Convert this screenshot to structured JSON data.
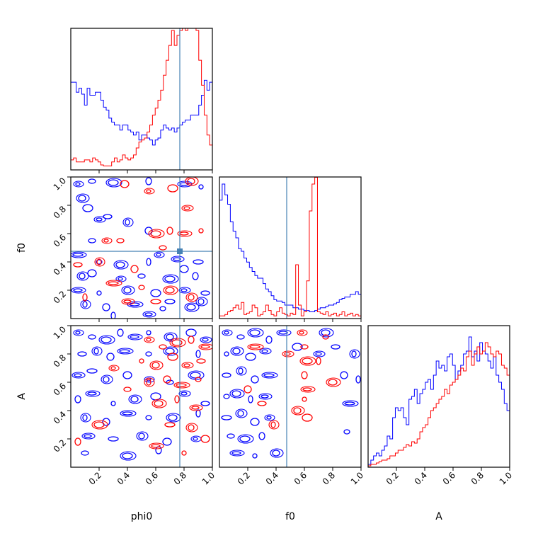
{
  "chart_data": {
    "type": "corner",
    "parameters": [
      "phi0",
      "f0",
      "A"
    ],
    "axis_labels": {
      "phi0": "phi0",
      "f0": "f0",
      "A": "A"
    },
    "range": [
      0,
      1
    ],
    "ticks": [
      0.2,
      0.4,
      0.6,
      0.8,
      1.0
    ],
    "tick_labels": [
      "0.2",
      "0.4",
      "0.6",
      "0.8",
      "1.0"
    ],
    "truths": {
      "phi0": 0.77,
      "f0": 0.475
    },
    "colors": {
      "series_a": "#0000ff",
      "series_b": "#ff0000",
      "truth": "#4682b4"
    },
    "histograms": {
      "phi0": {
        "blue": [
          0.88,
          0.88,
          0.78,
          0.82,
          0.76,
          0.65,
          0.82,
          0.75,
          0.75,
          0.78,
          0.78,
          0.7,
          0.63,
          0.6,
          0.52,
          0.48,
          0.45,
          0.45,
          0.4,
          0.45,
          0.45,
          0.4,
          0.38,
          0.35,
          0.38,
          0.3,
          0.35,
          0.35,
          0.32,
          0.3,
          0.25,
          0.3,
          0.32,
          0.4,
          0.45,
          0.42,
          0.4,
          0.42,
          0.38,
          0.42,
          0.45,
          0.48,
          0.5,
          0.5,
          0.55,
          0.55,
          0.55,
          0.65,
          0.75,
          0.9,
          0.8,
          0.88
        ],
        "red": [
          0.1,
          0.12,
          0.08,
          0.08,
          0.08,
          0.1,
          0.1,
          0.08,
          0.12,
          0.1,
          0.08,
          0.05,
          0.04,
          0.04,
          0.04,
          0.08,
          0.12,
          0.08,
          0.1,
          0.15,
          0.12,
          0.1,
          0.12,
          0.15,
          0.22,
          0.28,
          0.3,
          0.32,
          0.38,
          0.45,
          0.55,
          0.62,
          0.7,
          0.8,
          0.95,
          1.1,
          1.25,
          1.4,
          1.25,
          1.35,
          1.4,
          1.45,
          1.4,
          1.6,
          1.7,
          1.55,
          1.4,
          1.1,
          0.85,
          0.55,
          0.35,
          0.25
        ]
      },
      "f0": {
        "blue": [
          0.88,
          1.0,
          0.92,
          0.85,
          0.72,
          0.65,
          0.6,
          0.52,
          0.5,
          0.45,
          0.42,
          0.38,
          0.35,
          0.32,
          0.3,
          0.3,
          0.26,
          0.22,
          0.2,
          0.17,
          0.14,
          0.13,
          0.13,
          0.12,
          0.1,
          0.1,
          0.1,
          0.08,
          0.08,
          0.07,
          0.07,
          0.06,
          0.06,
          0.05,
          0.05,
          0.06,
          0.07,
          0.08,
          0.08,
          0.09,
          0.1,
          0.1,
          0.11,
          0.12,
          0.14,
          0.15,
          0.16,
          0.16,
          0.18,
          0.18,
          0.2,
          0.18
        ],
        "red": [
          0.02,
          0.02,
          0.03,
          0.05,
          0.06,
          0.08,
          0.1,
          0.07,
          0.12,
          0.03,
          0.04,
          0.05,
          0.1,
          0.08,
          0.02,
          0.03,
          0.05,
          0.1,
          0.06,
          0.03,
          0.02,
          0.05,
          0.08,
          0.04,
          0.03,
          0.02,
          0.04,
          0.03,
          0.4,
          0.1,
          0.02,
          0.05,
          0.28,
          0.8,
          1.0,
          1.05,
          0.05,
          0.04,
          0.03,
          0.05,
          0.02,
          0.03,
          0.04,
          0.02,
          0.03,
          0.05,
          0.02,
          0.03,
          0.04,
          0.02,
          0.03,
          0.02
        ]
      },
      "A": {
        "blue": [
          0.02,
          0.05,
          0.08,
          0.1,
          0.08,
          0.12,
          0.15,
          0.22,
          0.2,
          0.35,
          0.42,
          0.4,
          0.42,
          0.35,
          0.3,
          0.48,
          0.5,
          0.55,
          0.45,
          0.52,
          0.55,
          0.6,
          0.62,
          0.55,
          0.65,
          0.75,
          0.7,
          0.72,
          0.68,
          0.78,
          0.8,
          0.72,
          0.62,
          0.68,
          0.72,
          0.8,
          0.82,
          0.92,
          0.78,
          0.82,
          0.75,
          0.88,
          0.82,
          0.8,
          0.75,
          0.7,
          0.78,
          0.65,
          0.6,
          0.55,
          0.45,
          0.4
        ],
        "red": [
          0.01,
          0.02,
          0.02,
          0.03,
          0.04,
          0.05,
          0.05,
          0.06,
          0.08,
          0.08,
          0.1,
          0.12,
          0.12,
          0.14,
          0.16,
          0.15,
          0.18,
          0.17,
          0.2,
          0.25,
          0.28,
          0.3,
          0.35,
          0.4,
          0.42,
          0.45,
          0.48,
          0.5,
          0.55,
          0.52,
          0.58,
          0.6,
          0.62,
          0.65,
          0.7,
          0.68,
          0.78,
          0.82,
          0.72,
          0.8,
          0.85,
          0.8,
          0.82,
          0.88,
          0.85,
          0.8,
          0.78,
          0.82,
          0.8,
          0.72,
          0.7,
          0.65
        ]
      }
    },
    "contour_points": {
      "f0_vs_phi0": {
        "blue": [
          [
            0.05,
            0.95
          ],
          [
            0.15,
            0.97
          ],
          [
            0.3,
            0.96
          ],
          [
            0.55,
            0.97
          ],
          [
            0.8,
            0.95
          ],
          [
            0.92,
            0.93
          ],
          [
            0.08,
            0.85
          ],
          [
            0.12,
            0.78
          ],
          [
            0.2,
            0.7
          ],
          [
            0.26,
            0.72
          ],
          [
            0.4,
            0.68
          ],
          [
            0.55,
            0.62
          ],
          [
            0.05,
            0.45
          ],
          [
            0.2,
            0.4
          ],
          [
            0.35,
            0.38
          ],
          [
            0.55,
            0.4
          ],
          [
            0.75,
            0.42
          ],
          [
            0.9,
            0.4
          ],
          [
            0.08,
            0.3
          ],
          [
            0.15,
            0.32
          ],
          [
            0.35,
            0.28
          ],
          [
            0.5,
            0.3
          ],
          [
            0.7,
            0.28
          ],
          [
            0.88,
            0.3
          ],
          [
            0.05,
            0.2
          ],
          [
            0.2,
            0.18
          ],
          [
            0.4,
            0.2
          ],
          [
            0.6,
            0.18
          ],
          [
            0.8,
            0.2
          ],
          [
            0.95,
            0.18
          ],
          [
            0.1,
            0.1
          ],
          [
            0.25,
            0.08
          ],
          [
            0.45,
            0.1
          ],
          [
            0.65,
            0.07
          ],
          [
            0.85,
            0.08
          ],
          [
            0.3,
            0.02
          ],
          [
            0.55,
            0.03
          ],
          [
            0.7,
            0.12
          ],
          [
            0.92,
            0.12
          ],
          [
            0.8,
            0.35
          ],
          [
            0.62,
            0.45
          ],
          [
            0.15,
            0.55
          ]
        ],
        "red": [
          [
            0.25,
            0.55
          ],
          [
            0.35,
            0.55
          ],
          [
            0.6,
            0.6
          ],
          [
            0.7,
            0.62
          ],
          [
            0.8,
            0.6
          ],
          [
            0.92,
            0.62
          ],
          [
            0.85,
            0.97
          ],
          [
            0.72,
            0.92
          ],
          [
            0.82,
            0.78
          ],
          [
            0.05,
            0.38
          ],
          [
            0.2,
            0.4
          ],
          [
            0.45,
            0.35
          ],
          [
            0.3,
            0.25
          ],
          [
            0.5,
            0.22
          ],
          [
            0.7,
            0.2
          ],
          [
            0.1,
            0.15
          ],
          [
            0.4,
            0.12
          ],
          [
            0.6,
            0.12
          ],
          [
            0.85,
            0.15
          ],
          [
            0.38,
            0.95
          ],
          [
            0.55,
            0.9
          ],
          [
            0.65,
            0.5
          ]
        ]
      },
      "A_vs_phi0": {
        "blue": [
          [
            0.05,
            0.95
          ],
          [
            0.15,
            0.92
          ],
          [
            0.25,
            0.9
          ],
          [
            0.35,
            0.95
          ],
          [
            0.45,
            0.92
          ],
          [
            0.55,
            0.95
          ],
          [
            0.7,
            0.92
          ],
          [
            0.85,
            0.95
          ],
          [
            0.95,
            0.9
          ],
          [
            0.08,
            0.8
          ],
          [
            0.18,
            0.82
          ],
          [
            0.28,
            0.78
          ],
          [
            0.38,
            0.82
          ],
          [
            0.55,
            0.8
          ],
          [
            0.7,
            0.82
          ],
          [
            0.9,
            0.8
          ],
          [
            0.05,
            0.65
          ],
          [
            0.15,
            0.68
          ],
          [
            0.25,
            0.62
          ],
          [
            0.4,
            0.65
          ],
          [
            0.55,
            0.62
          ],
          [
            0.7,
            0.6
          ],
          [
            0.88,
            0.65
          ],
          [
            0.05,
            0.48
          ],
          [
            0.15,
            0.52
          ],
          [
            0.3,
            0.45
          ],
          [
            0.45,
            0.48
          ],
          [
            0.6,
            0.5
          ],
          [
            0.8,
            0.52
          ],
          [
            0.95,
            0.45
          ],
          [
            0.1,
            0.35
          ],
          [
            0.25,
            0.32
          ],
          [
            0.4,
            0.38
          ],
          [
            0.55,
            0.35
          ],
          [
            0.72,
            0.35
          ],
          [
            0.9,
            0.38
          ],
          [
            0.12,
            0.22
          ],
          [
            0.3,
            0.2
          ],
          [
            0.5,
            0.22
          ],
          [
            0.68,
            0.18
          ],
          [
            0.88,
            0.2
          ],
          [
            0.1,
            0.1
          ],
          [
            0.4,
            0.08
          ],
          [
            0.62,
            0.12
          ]
        ],
        "red": [
          [
            0.55,
            0.9
          ],
          [
            0.65,
            0.85
          ],
          [
            0.75,
            0.88
          ],
          [
            0.85,
            0.9
          ],
          [
            0.95,
            0.85
          ],
          [
            0.5,
            0.75
          ],
          [
            0.6,
            0.72
          ],
          [
            0.72,
            0.78
          ],
          [
            0.82,
            0.72
          ],
          [
            0.92,
            0.75
          ],
          [
            0.55,
            0.6
          ],
          [
            0.68,
            0.62
          ],
          [
            0.78,
            0.58
          ],
          [
            0.9,
            0.62
          ],
          [
            0.62,
            0.45
          ],
          [
            0.75,
            0.48
          ],
          [
            0.88,
            0.42
          ],
          [
            0.7,
            0.3
          ],
          [
            0.85,
            0.28
          ],
          [
            0.95,
            0.2
          ],
          [
            0.3,
            0.7
          ],
          [
            0.4,
            0.55
          ],
          [
            0.2,
            0.3
          ],
          [
            0.05,
            0.18
          ],
          [
            0.6,
            0.15
          ],
          [
            0.8,
            0.1
          ]
        ]
      },
      "A_vs_f0": {
        "blue": [
          [
            0.05,
            0.95
          ],
          [
            0.15,
            0.92
          ],
          [
            0.25,
            0.95
          ],
          [
            0.35,
            0.9
          ],
          [
            0.45,
            0.95
          ],
          [
            0.05,
            0.8
          ],
          [
            0.12,
            0.82
          ],
          [
            0.22,
            0.78
          ],
          [
            0.32,
            0.82
          ],
          [
            0.05,
            0.65
          ],
          [
            0.15,
            0.68
          ],
          [
            0.25,
            0.62
          ],
          [
            0.35,
            0.65
          ],
          [
            0.05,
            0.5
          ],
          [
            0.12,
            0.52
          ],
          [
            0.22,
            0.48
          ],
          [
            0.32,
            0.5
          ],
          [
            0.05,
            0.35
          ],
          [
            0.15,
            0.38
          ],
          [
            0.25,
            0.32
          ],
          [
            0.35,
            0.35
          ],
          [
            0.08,
            0.22
          ],
          [
            0.18,
            0.2
          ],
          [
            0.3,
            0.22
          ],
          [
            0.12,
            0.1
          ],
          [
            0.25,
            0.08
          ],
          [
            0.4,
            0.1
          ],
          [
            0.55,
            0.85
          ],
          [
            0.7,
            0.8
          ],
          [
            0.82,
            0.85
          ],
          [
            0.95,
            0.8
          ],
          [
            0.88,
            0.65
          ],
          [
            0.92,
            0.45
          ],
          [
            0.9,
            0.25
          ],
          [
            0.75,
            0.95
          ],
          [
            0.98,
            0.62
          ]
        ],
        "red": [
          [
            0.58,
            0.95
          ],
          [
            0.6,
            0.85
          ],
          [
            0.62,
            0.75
          ],
          [
            0.6,
            0.65
          ],
          [
            0.62,
            0.55
          ],
          [
            0.6,
            0.48
          ],
          [
            0.55,
            0.4
          ],
          [
            0.62,
            0.35
          ],
          [
            0.48,
            0.8
          ],
          [
            0.3,
            0.45
          ],
          [
            0.38,
            0.3
          ],
          [
            0.2,
            0.55
          ],
          [
            0.25,
            0.85
          ],
          [
            0.75,
            0.92
          ],
          [
            0.8,
            0.6
          ],
          [
            0.7,
            0.75
          ]
        ]
      }
    }
  }
}
